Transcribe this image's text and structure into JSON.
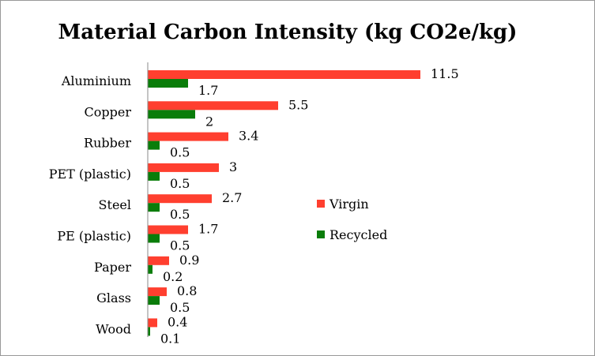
{
  "chart_data": {
    "type": "bar",
    "orientation": "horizontal",
    "title": "Material Carbon Intensity (kg CO2e/kg)",
    "categories": [
      "Aluminium",
      "Copper",
      "Rubber",
      "PET (plastic)",
      "Steel",
      "PE (plastic)",
      "Paper",
      "Glass",
      "Wood"
    ],
    "series": [
      {
        "name": "Virgin",
        "color": "#ff3f2f",
        "values": [
          11.5,
          5.5,
          3.4,
          3,
          2.7,
          1.7,
          0.9,
          0.8,
          0.4
        ]
      },
      {
        "name": "Recycled",
        "color": "#0a7d0a",
        "values": [
          1.7,
          2,
          0.5,
          0.5,
          0.5,
          0.5,
          0.2,
          0.5,
          0.1
        ]
      }
    ],
    "value_labels": [
      [
        "11.5",
        "5.5",
        "3.4",
        "3",
        "2.7",
        "1.7",
        "0.9",
        "0.8",
        "0.4"
      ],
      [
        "1.7",
        "2",
        "0.5",
        "0.5",
        "0.5",
        "0.5",
        "0.2",
        "0.5",
        "0.1"
      ]
    ],
    "xlim": [
      0,
      12.5
    ],
    "grid": false,
    "legend_position": "right"
  }
}
